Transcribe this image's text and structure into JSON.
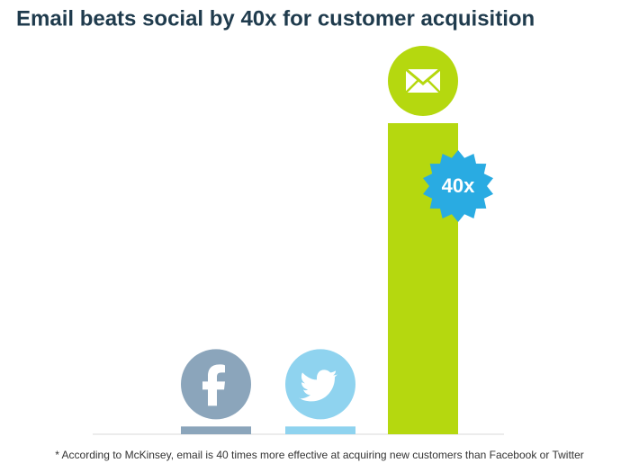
{
  "chart_data": {
    "type": "bar",
    "title": "Email beats social by 40x for customer acquisition",
    "footnote": "* According to McKinsey, email is 40 times more effective at acquiring new customers than Facebook or Twitter",
    "categories": [
      null,
      null,
      null
    ],
    "values": [
      1,
      1,
      40
    ],
    "value_labels": [
      null,
      null,
      "40x"
    ],
    "colors": [
      "#8ba5bb",
      "#8fd3ef",
      "#b5d80f"
    ],
    "label_color": "#29abe2"
  }
}
